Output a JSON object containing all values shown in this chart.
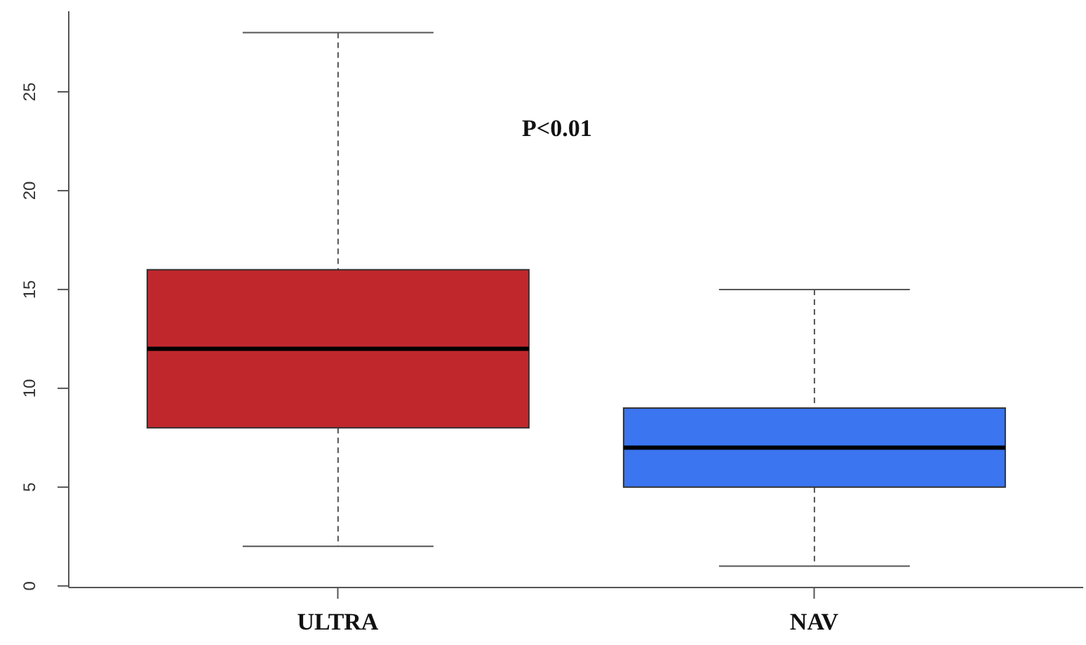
{
  "chart_data": {
    "type": "box",
    "categories": [
      "ULTRA",
      "NAV"
    ],
    "boxes": [
      {
        "low": 2,
        "q1": 8,
        "median": 12,
        "q3": 16,
        "high": 28
      },
      {
        "low": 1,
        "q1": 5,
        "median": 7,
        "q3": 9,
        "high": 15
      }
    ],
    "colors": [
      "#c0272d",
      "#3b75f0"
    ],
    "ylim": [
      -0.08,
      29.08
    ],
    "yticks": [
      0,
      5,
      10,
      15,
      20,
      25
    ],
    "annotations": [
      "P<0.01"
    ]
  }
}
